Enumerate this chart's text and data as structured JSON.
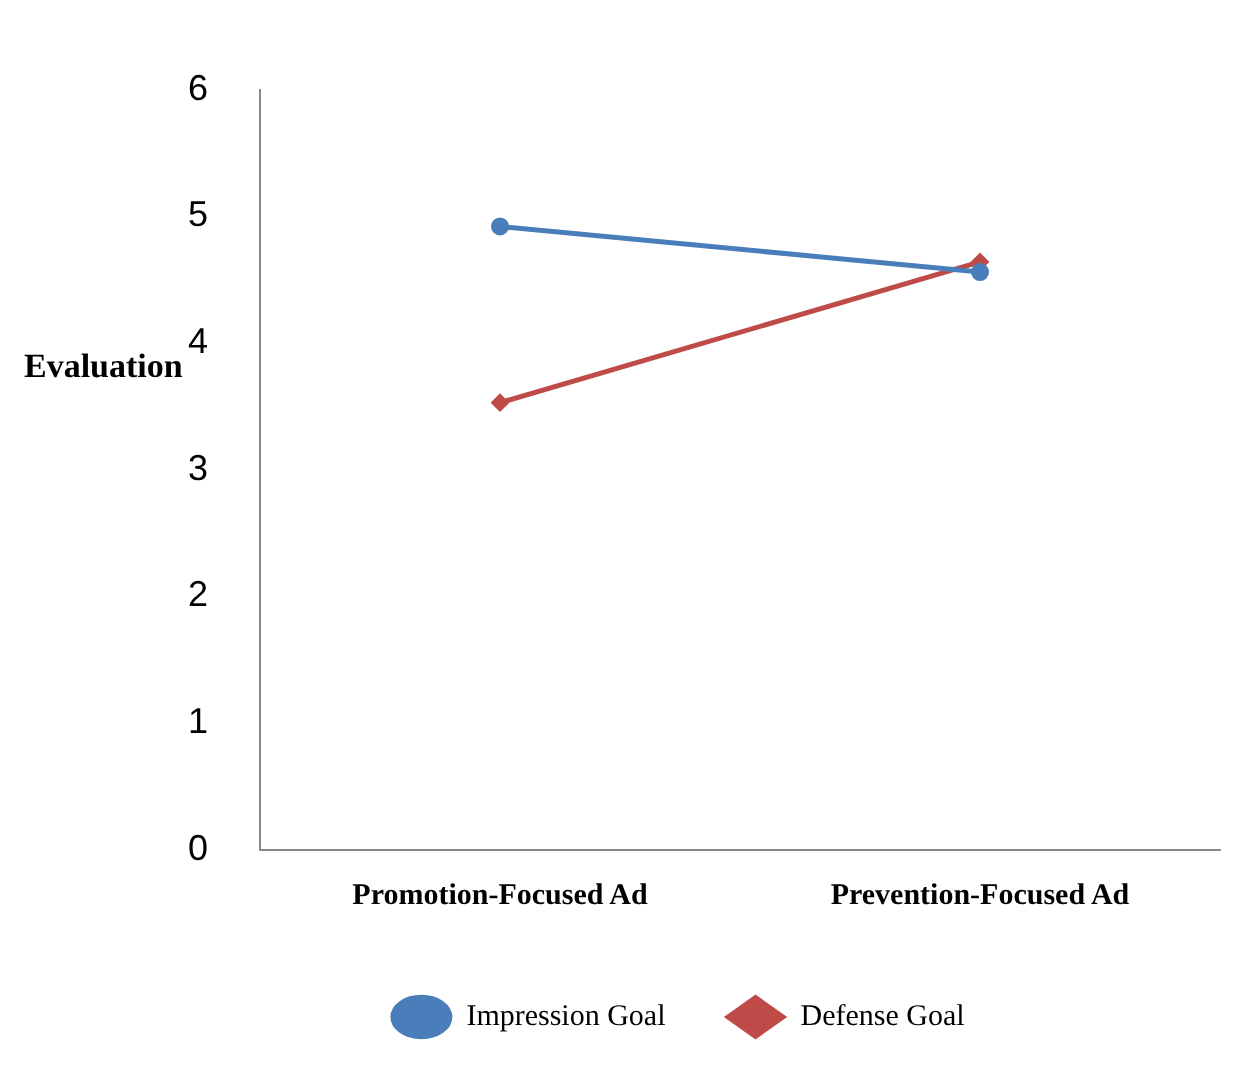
{
  "chart_data": {
    "type": "line",
    "ylabel": "Evaluation",
    "categories": [
      "Promotion-Focused Ad",
      "Prevention-Focused Ad"
    ],
    "series": [
      {
        "name": "Impression Goal",
        "color": "#4a7ebb",
        "values": [
          4.92,
          4.56
        ],
        "marker": "circle"
      },
      {
        "name": "Defense Goal",
        "color": "#be4b48",
        "values": [
          3.53,
          4.64
        ],
        "marker": "diamond"
      }
    ],
    "ylim": [
      0,
      6
    ],
    "yticks": [
      0,
      1,
      2,
      3,
      4,
      5,
      6
    ],
    "grid": false,
    "legend": "bottom",
    "line_style": "solid"
  }
}
